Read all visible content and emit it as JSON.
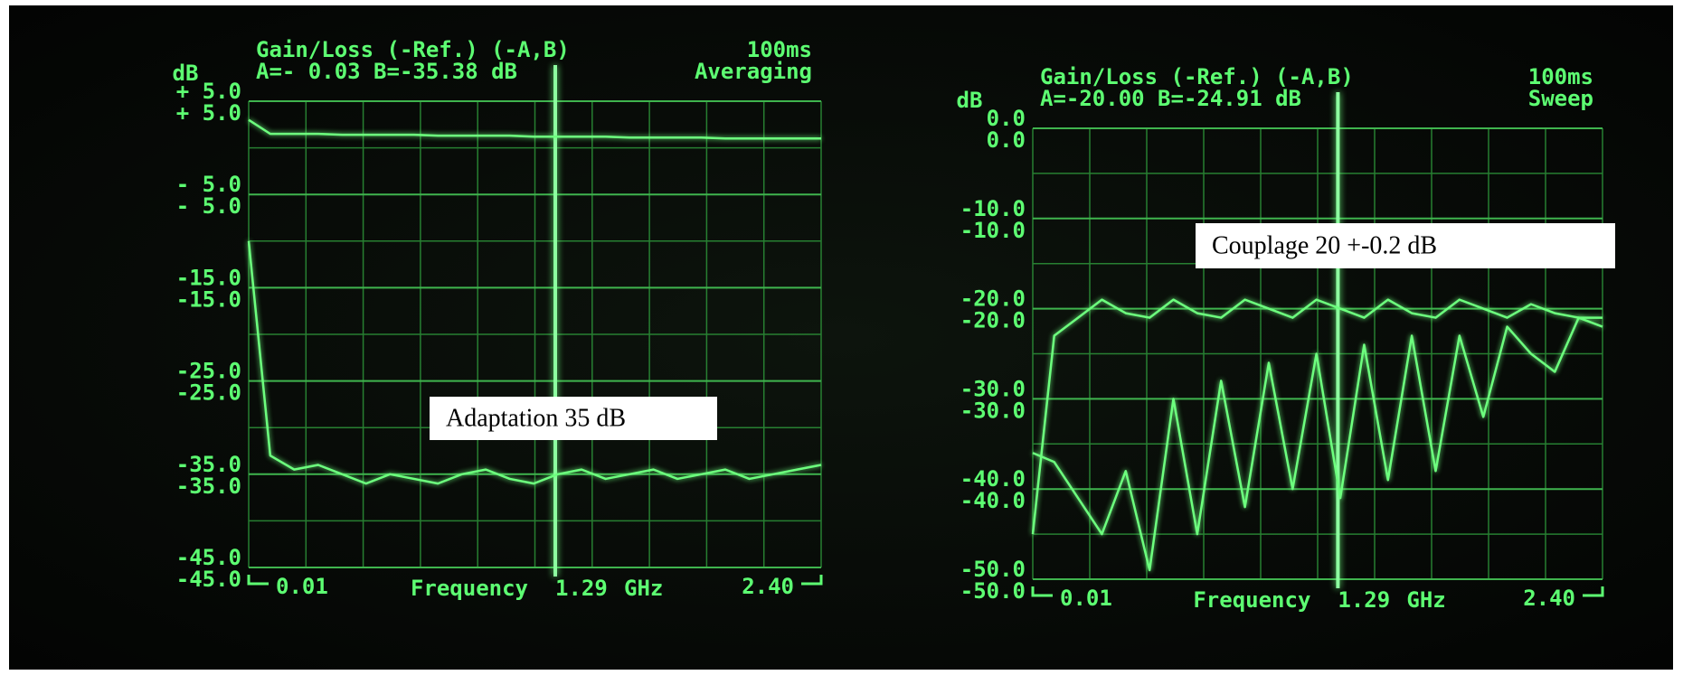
{
  "chart_data": [
    {
      "type": "line",
      "title": "Gain/Loss (-Ref.) (-A,B)",
      "sweep_time": "100ms",
      "readout": "A=- 0.03 B=-35.38 dB",
      "mode": "Averaging",
      "y_label": "dB",
      "x_label": "Frequency",
      "x_unit": "GHz",
      "marker_x": 1.29,
      "annotation": "Adaptation 35 dB",
      "xlim": [
        0.01,
        2.4
      ],
      "xticks": [
        0.01,
        {
          "value": 2.4,
          "label": "2.40"
        }
      ],
      "ylim": [
        -45,
        5
      ],
      "yticks": [
        {
          "value": 5,
          "label": "+ 5.0"
        },
        {
          "value": -5,
          "label": "- 5.0"
        },
        {
          "value": -15,
          "label": "-15.0"
        },
        {
          "value": -25,
          "label": "-25.0"
        },
        {
          "value": -35,
          "label": "-35.0"
        },
        {
          "value": -45,
          "label": "-45.0"
        }
      ],
      "grid": true,
      "x": [
        0.01,
        0.1,
        0.2,
        0.3,
        0.4,
        0.5,
        0.6,
        0.7,
        0.8,
        0.9,
        1.0,
        1.1,
        1.2,
        1.3,
        1.4,
        1.5,
        1.6,
        1.7,
        1.8,
        1.9,
        2.0,
        2.1,
        2.2,
        2.3,
        2.4
      ],
      "series": [
        {
          "color": "#6dff7e",
          "values": [
            3,
            1.5,
            1.5,
            1.5,
            1.4,
            1.4,
            1.4,
            1.4,
            1.3,
            1.3,
            1.3,
            1.3,
            1.2,
            1.2,
            1.2,
            1.2,
            1.1,
            1.1,
            1.1,
            1.1,
            1.0,
            1.0,
            1.0,
            1.0,
            1.0
          ]
        },
        {
          "color": "#6dff7e",
          "values": [
            -10,
            -33,
            -34.5,
            -34,
            -35,
            -36,
            -35,
            -35.5,
            -36,
            -35,
            -34.5,
            -35.5,
            -36,
            -35,
            -34.5,
            -35.5,
            -35,
            -34.5,
            -35.5,
            -35,
            -34.5,
            -35.5,
            -35,
            -34.5,
            -34
          ]
        }
      ]
    },
    {
      "type": "line",
      "title": "Gain/Loss (-Ref.) (-A,B)",
      "sweep_time": "100ms",
      "readout": "A=-20.00 B=-24.91 dB",
      "mode": "Sweep",
      "y_label": "dB",
      "x_label": "Frequency",
      "x_unit": "GHz",
      "marker_x": 1.29,
      "annotation": "Couplage 20 +-0.2 dB",
      "xlim": [
        0.01,
        2.4
      ],
      "xticks": [
        0.01,
        {
          "value": 2.4,
          "label": "2.40"
        }
      ],
      "ylim": [
        -50,
        0
      ],
      "yticks": [
        {
          "value": 0,
          "label": "0.0"
        },
        {
          "value": -10,
          "label": "-10.0"
        },
        {
          "value": -20,
          "label": "-20.0"
        },
        {
          "value": -30,
          "label": "-30.0"
        },
        {
          "value": -40,
          "label": "-40.0"
        },
        {
          "value": -50,
          "label": "-50.0"
        }
      ],
      "grid": true,
      "x": [
        0.01,
        0.1,
        0.2,
        0.3,
        0.4,
        0.5,
        0.6,
        0.7,
        0.8,
        0.9,
        1.0,
        1.1,
        1.2,
        1.3,
        1.4,
        1.5,
        1.6,
        1.7,
        1.8,
        1.9,
        2.0,
        2.1,
        2.2,
        2.3,
        2.4
      ],
      "series": [
        {
          "color": "#6dff7e",
          "values": [
            -45,
            -23,
            -21,
            -19,
            -20.5,
            -21,
            -19,
            -20.5,
            -21,
            -19,
            -20,
            -21,
            -19,
            -20,
            -21,
            -19,
            -20.5,
            -21,
            -19,
            -20,
            -21,
            -19.5,
            -20.5,
            -21,
            -21
          ]
        },
        {
          "color": "#6dff7e",
          "values": [
            -36,
            -37,
            -41,
            -45,
            -38,
            -49,
            -30,
            -45,
            -28,
            -42,
            -26,
            -40,
            -25,
            -41,
            -24,
            -39,
            -23,
            -38,
            -23,
            -32,
            -22,
            -25,
            -27,
            -21,
            -22
          ]
        }
      ]
    }
  ]
}
